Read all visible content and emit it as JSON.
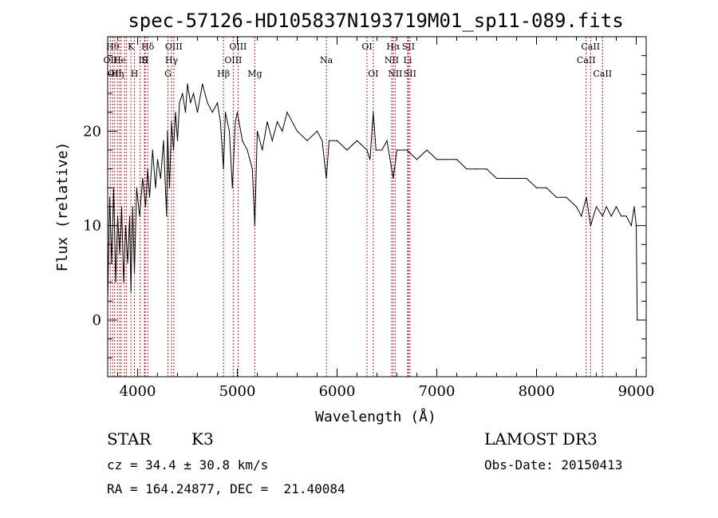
{
  "chart_data": {
    "type": "line",
    "title": "spec-57126-HD105837N193719M01_sp11-089.fits",
    "xlabel": "Wavelength (Å)",
    "ylabel": "Flux (relative)",
    "xlim": [
      3700,
      9100
    ],
    "ylim": [
      -6,
      30
    ],
    "xticks": [
      4000,
      5000,
      6000,
      7000,
      8000,
      9000
    ],
    "yticks": [
      0,
      10,
      20
    ],
    "grid": false,
    "series": [
      {
        "x": [
          3700,
          3720,
          3740,
          3760,
          3780,
          3800,
          3820,
          3840,
          3860,
          3880,
          3900,
          3920,
          3933,
          3950,
          3968,
          3990,
          4020,
          4050,
          4080,
          4101,
          4120,
          4150,
          4180,
          4200,
          4230,
          4260,
          4290,
          4300,
          4320,
          4340,
          4360,
          4380,
          4400,
          4420,
          4450,
          4480,
          4500,
          4530,
          4560,
          4600,
          4650,
          4700,
          4750,
          4800,
          4830,
          4861,
          4880,
          4920,
          4950,
          4980,
          5000,
          5050,
          5100,
          5150,
          5175,
          5200,
          5250,
          5300,
          5350,
          5400,
          5450,
          5500,
          5600,
          5700,
          5800,
          5850,
          5893,
          5920,
          6000,
          6100,
          6200,
          6300,
          6330,
          6363,
          6390,
          6450,
          6500,
          6563,
          6600,
          6700,
          6800,
          6900,
          7000,
          7100,
          7200,
          7300,
          7400,
          7500,
          7600,
          7700,
          7800,
          7900,
          8000,
          8100,
          8200,
          8300,
          8400,
          8450,
          8500,
          8542,
          8600,
          8662,
          8700,
          8750,
          8800,
          8850,
          8900,
          8950,
          8980,
          9000,
          9010
        ],
        "values": [
          2,
          13,
          6,
          14,
          4,
          11,
          7,
          12,
          4,
          10,
          6,
          11,
          3,
          12,
          5,
          14,
          11,
          15,
          12,
          16,
          13,
          18,
          14,
          17,
          15,
          19,
          11,
          20,
          14,
          21,
          18,
          22,
          19,
          23,
          24,
          22,
          25,
          23,
          24,
          22,
          25,
          23,
          22,
          23,
          21,
          16,
          22,
          20,
          14,
          21,
          22,
          19,
          18,
          16,
          10,
          20,
          18,
          21,
          19,
          21,
          20,
          22,
          20,
          19,
          20,
          19,
          15,
          19,
          19,
          18,
          19,
          18,
          17,
          22,
          18,
          18,
          19,
          15,
          18,
          18,
          17,
          18,
          17,
          17,
          17,
          16,
          16,
          16,
          15,
          15,
          15,
          15,
          14,
          14,
          13,
          13,
          12,
          11,
          13,
          10,
          12,
          11,
          12,
          11,
          12,
          11,
          11,
          10,
          12,
          10,
          0
        ]
      }
    ],
    "lines": [
      {
        "x": 3727,
        "label": "OII",
        "row": 2
      },
      {
        "x": 3750,
        "label": "Hθ",
        "row": 1
      },
      {
        "x": 3770,
        "label": "OII",
        "row": 3
      },
      {
        "x": 3798,
        "label": "Hη",
        "row": 3
      },
      {
        "x": 3820,
        "label": "He",
        "row": 2
      },
      {
        "x": 3835,
        "label": "",
        "row": 0
      },
      {
        "x": 3869,
        "label": "",
        "row": 0
      },
      {
        "x": 3889,
        "label": "",
        "row": 0
      },
      {
        "x": 3933,
        "label": "K",
        "row": 1
      },
      {
        "x": 3968,
        "label": "H",
        "row": 3
      },
      {
        "x": 4026,
        "label": "I",
        "row": 2
      },
      {
        "x": 4069,
        "label": "S",
        "row": 2
      },
      {
        "x": 4101,
        "label": "Hδ",
        "row": 1
      },
      {
        "x": 4076,
        "label": "II",
        "row": 2
      },
      {
        "x": 4304,
        "label": "G",
        "row": 3
      },
      {
        "x": 4340,
        "label": "Hγ",
        "row": 2
      },
      {
        "x": 4363,
        "label": "OIII",
        "row": 1
      },
      {
        "x": 4861,
        "label": "Hβ",
        "row": 3
      },
      {
        "x": 4959,
        "label": "OIII",
        "row": 2
      },
      {
        "x": 5007,
        "label": "OIII",
        "row": 1
      },
      {
        "x": 5175,
        "label": "Mg",
        "row": 3
      },
      {
        "x": 5893,
        "label": "Na",
        "row": 2
      },
      {
        "x": 6300,
        "label": "OI",
        "row": 1
      },
      {
        "x": 6363,
        "label": "OI",
        "row": 3
      },
      {
        "x": 6548,
        "label": "NII",
        "row": 2
      },
      {
        "x": 6563,
        "label": "Hα",
        "row": 1
      },
      {
        "x": 6583,
        "label": "NII",
        "row": 3
      },
      {
        "x": 6708,
        "label": "Li",
        "row": 2
      },
      {
        "x": 6716,
        "label": "SII",
        "row": 1
      },
      {
        "x": 6731,
        "label": "SII",
        "row": 3
      },
      {
        "x": 8498,
        "label": "CaII",
        "row": 2
      },
      {
        "x": 8542,
        "label": "CaII",
        "row": 1
      },
      {
        "x": 8662,
        "label": "CaII",
        "row": 3
      }
    ]
  },
  "info": {
    "object_class": "STAR",
    "subclass": "K3",
    "survey": "LAMOST DR3",
    "redshift": "cz = 34.4 ± 30.8 km/s",
    "obs_date": "Obs-Date: 20150413",
    "coords": "RA = 164.24877, DEC =  21.40084"
  }
}
